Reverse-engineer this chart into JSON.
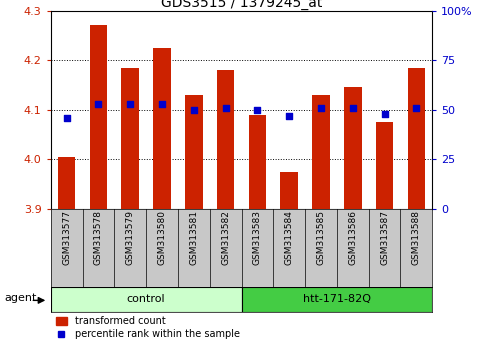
{
  "title": "GDS3515 / 1379245_at",
  "samples": [
    "GSM313577",
    "GSM313578",
    "GSM313579",
    "GSM313580",
    "GSM313581",
    "GSM313582",
    "GSM313583",
    "GSM313584",
    "GSM313585",
    "GSM313586",
    "GSM313587",
    "GSM313588"
  ],
  "bar_values": [
    4.005,
    4.27,
    4.185,
    4.225,
    4.13,
    4.18,
    4.09,
    3.975,
    4.13,
    4.145,
    4.075,
    4.185
  ],
  "percentile_values": [
    46,
    53,
    53,
    53,
    50,
    51,
    50,
    47,
    51,
    51,
    48,
    51
  ],
  "y_min": 3.9,
  "y_max": 4.3,
  "y_ticks": [
    3.9,
    4.0,
    4.1,
    4.2,
    4.3
  ],
  "y2_ticks": [
    0,
    25,
    50,
    75,
    100
  ],
  "bar_color": "#cc2200",
  "dot_color": "#0000cc",
  "n_control": 6,
  "n_treatment": 6,
  "control_label": "control",
  "treatment_label": "htt-171-82Q",
  "agent_label": "agent",
  "legend_bar_label": "transformed count",
  "legend_dot_label": "percentile rank within the sample",
  "control_bg": "#ccffcc",
  "treatment_bg": "#44cc44",
  "tick_area_bg": "#c8c8c8",
  "grid_color": "#000000",
  "title_fontsize": 10,
  "axis_fontsize": 8,
  "tick_label_fontsize": 6.5,
  "group_label_fontsize": 8,
  "legend_fontsize": 7,
  "agent_fontsize": 8
}
